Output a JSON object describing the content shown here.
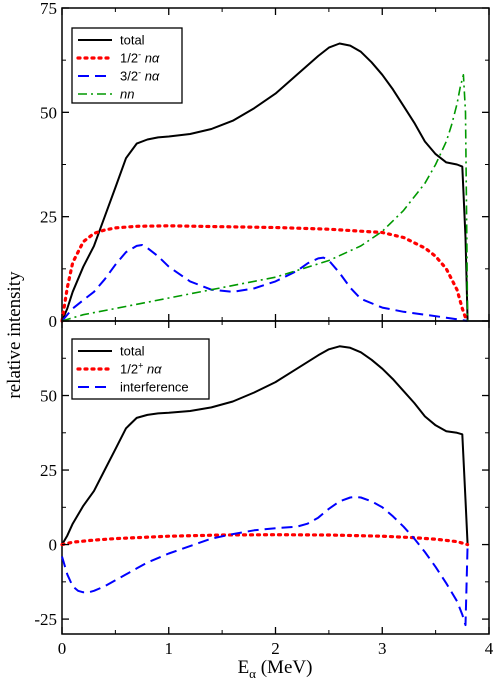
{
  "figure": {
    "ylabel": "relative intensity",
    "xlabel_main": "E",
    "xlabel_sub": "α",
    "xlabel_unit": " (MeV)"
  },
  "colors": {
    "total": "#000000",
    "red_dotted": "#ff0000",
    "blue_dashed": "#0000ff",
    "green_dashdot": "#009900"
  },
  "chart_data": [
    {
      "type": "line",
      "panel": "top",
      "xlim": [
        0,
        4
      ],
      "ylim": [
        0,
        75
      ],
      "xticks": [
        0,
        1,
        2,
        3,
        4
      ],
      "yticks": [
        0,
        25,
        50,
        75
      ],
      "xtick_labels": [
        "",
        "",
        "",
        "",
        ""
      ],
      "ytick_labels": [
        "0",
        "25",
        "50",
        "75"
      ],
      "legend_position": "top-left",
      "series": [
        {
          "name": "total",
          "style": "solid",
          "x": [
            0,
            0.05,
            0.1,
            0.2,
            0.3,
            0.4,
            0.5,
            0.6,
            0.7,
            0.8,
            0.9,
            1.0,
            1.2,
            1.4,
            1.6,
            1.8,
            2.0,
            2.2,
            2.4,
            2.5,
            2.6,
            2.7,
            2.8,
            2.9,
            3.0,
            3.1,
            3.2,
            3.3,
            3.4,
            3.5,
            3.6,
            3.7,
            3.75,
            3.78,
            3.8
          ],
          "y": [
            0,
            3,
            7,
            13,
            18,
            25,
            32,
            39,
            42.5,
            43.5,
            44,
            44.2,
            44.8,
            46,
            48,
            51,
            54.5,
            59,
            63.5,
            65.5,
            66.5,
            66,
            64.5,
            62,
            59,
            55.5,
            51.5,
            47.5,
            43,
            40,
            38,
            37.5,
            37,
            20,
            0
          ]
        },
        {
          "name": "1/2⁻ nα",
          "label_parts": [
            "1/2",
            "-",
            " nα"
          ],
          "style": "dotted",
          "x": [
            0,
            0.05,
            0.1,
            0.2,
            0.3,
            0.4,
            0.5,
            0.7,
            1.0,
            1.5,
            2.0,
            2.5,
            3.0,
            3.2,
            3.4,
            3.5,
            3.6,
            3.7,
            3.75,
            3.78,
            3.8
          ],
          "y": [
            0,
            8,
            14,
            19,
            21,
            21.8,
            22.3,
            22.7,
            22.8,
            22.6,
            22.4,
            22,
            21.2,
            20,
            17.5,
            15.5,
            12.5,
            7.5,
            3,
            0.8,
            0
          ]
        },
        {
          "name": "3/2⁻ nα",
          "label_parts": [
            "3/2",
            "-",
            " nα"
          ],
          "style": "dashed",
          "x": [
            0,
            0.1,
            0.2,
            0.3,
            0.4,
            0.5,
            0.6,
            0.7,
            0.75,
            0.8,
            0.9,
            1.0,
            1.2,
            1.4,
            1.6,
            1.8,
            2.0,
            2.2,
            2.3,
            2.4,
            2.45,
            2.5,
            2.6,
            2.7,
            2.8,
            3.0,
            3.2,
            3.4,
            3.6,
            3.7,
            3.75,
            3.8
          ],
          "y": [
            0,
            3,
            5,
            7,
            10,
            13.5,
            16.5,
            18,
            18.2,
            17.5,
            15.5,
            13,
            9.5,
            7.5,
            7,
            7.8,
            9.5,
            12,
            13.8,
            15,
            15.2,
            14.5,
            11.5,
            8,
            5.3,
            3.2,
            2.2,
            1.5,
            0.8,
            0.4,
            0.2,
            0
          ]
        },
        {
          "name": "nn",
          "style": "dashdot",
          "x": [
            0,
            0.2,
            0.5,
            1.0,
            1.5,
            2.0,
            2.5,
            2.8,
            3.0,
            3.2,
            3.4,
            3.5,
            3.6,
            3.65,
            3.7,
            3.73,
            3.76,
            3.78,
            3.79,
            3.8
          ],
          "y": [
            0,
            1.5,
            3,
            5.5,
            8,
            10.5,
            14.5,
            18,
            21.5,
            26.5,
            33,
            37.5,
            43,
            47,
            52,
            56,
            59,
            50,
            25,
            0
          ]
        }
      ]
    },
    {
      "type": "line",
      "panel": "bottom",
      "xlim": [
        0,
        4
      ],
      "ylim": [
        -30,
        75
      ],
      "xlabel": "E_α (MeV)",
      "xticks": [
        0,
        1,
        2,
        3,
        4
      ],
      "yticks": [
        -25,
        0,
        25,
        50
      ],
      "xtick_labels": [
        "0",
        "1",
        "2",
        "3",
        "4"
      ],
      "ytick_labels": [
        "-25",
        "0",
        "25",
        "50"
      ],
      "legend_position": "top-left",
      "series": [
        {
          "name": "total",
          "style": "solid",
          "x": [
            0,
            0.05,
            0.1,
            0.2,
            0.3,
            0.4,
            0.5,
            0.6,
            0.7,
            0.8,
            0.9,
            1.0,
            1.2,
            1.4,
            1.6,
            1.8,
            2.0,
            2.2,
            2.4,
            2.5,
            2.6,
            2.7,
            2.8,
            2.9,
            3.0,
            3.1,
            3.2,
            3.3,
            3.4,
            3.5,
            3.6,
            3.7,
            3.75,
            3.78,
            3.8
          ],
          "y": [
            0,
            3,
            7,
            13,
            18,
            25,
            32,
            39,
            42.5,
            43.5,
            44,
            44.2,
            44.8,
            46,
            48,
            51,
            54.5,
            59,
            63.5,
            65.5,
            66.5,
            66,
            64.5,
            62,
            59,
            55.5,
            51.5,
            47.5,
            43,
            40,
            38,
            37.5,
            37,
            15,
            0
          ]
        },
        {
          "name": "1/2⁺ nα",
          "label_parts": [
            "1/2",
            "+",
            " nα"
          ],
          "style": "dotted",
          "x": [
            0,
            0.1,
            0.3,
            0.5,
            1.0,
            1.5,
            2.0,
            2.5,
            3.0,
            3.3,
            3.5,
            3.7,
            3.8
          ],
          "y": [
            0,
            0.8,
            1.5,
            2,
            2.8,
            3.2,
            3.3,
            3.2,
            2.8,
            2.3,
            1.8,
            1,
            0
          ]
        },
        {
          "name": "interference",
          "style": "dashed",
          "x": [
            0,
            0.05,
            0.1,
            0.15,
            0.2,
            0.25,
            0.3,
            0.4,
            0.5,
            0.6,
            0.7,
            0.8,
            1.0,
            1.2,
            1.4,
            1.6,
            1.8,
            2.0,
            2.2,
            2.3,
            2.4,
            2.5,
            2.6,
            2.7,
            2.75,
            2.8,
            2.9,
            3.0,
            3.1,
            3.2,
            3.3,
            3.4,
            3.5,
            3.6,
            3.7,
            3.75,
            3.78,
            3.8
          ],
          "y": [
            -4,
            -10,
            -14,
            -15.5,
            -16,
            -16,
            -15.5,
            -14,
            -12,
            -10,
            -8,
            -6,
            -3,
            -0.5,
            2,
            3.5,
            4.8,
            5.5,
            6,
            7,
            9,
            12,
            14.5,
            15.8,
            16,
            15.8,
            14.5,
            12.5,
            9.5,
            6,
            2,
            -2.5,
            -7.5,
            -13,
            -19,
            -23.5,
            -27,
            0
          ]
        }
      ]
    }
  ]
}
